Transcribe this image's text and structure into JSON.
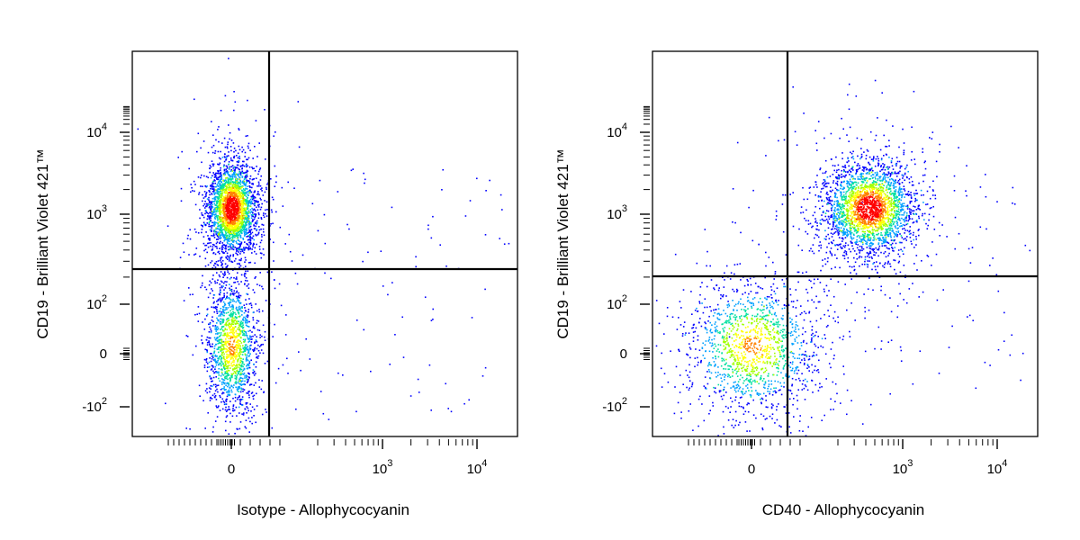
{
  "chart_data": [
    {
      "type": "scatter",
      "xlabel": "Isotype - Allophycocyanin",
      "ylabel": "CD19 - Brilliant Violet 421™",
      "x_scale": "biexponential",
      "y_scale": "biexponential",
      "x_ticks": [
        {
          "value": 0,
          "base": "0",
          "exp": ""
        },
        {
          "value": 1000,
          "base": "10",
          "exp": "3"
        },
        {
          "value": 10000,
          "base": "10",
          "exp": "4"
        }
      ],
      "y_ticks": [
        {
          "value": -100,
          "base": "-10",
          "exp": "2"
        },
        {
          "value": 0,
          "base": "0",
          "exp": ""
        },
        {
          "value": 100,
          "base": "10",
          "exp": "2"
        },
        {
          "value": 1000,
          "base": "10",
          "exp": "3"
        },
        {
          "value": 10000,
          "base": "10",
          "exp": "4"
        }
      ],
      "quadrant_gate": {
        "x": 50,
        "y": 200
      },
      "populations": [
        {
          "name": "",
          "x_center": 0,
          "y_center": 1200,
          "x_spread": "narrow",
          "y_spread": "moderate",
          "density": "high"
        },
        {
          "name": "",
          "x_center": 0,
          "y_center": 5,
          "x_spread": "narrow",
          "y_spread": "wide",
          "density": "medium"
        }
      ],
      "colormap": [
        "#0000ff",
        "#00a0ff",
        "#00e0a0",
        "#a0ff00",
        "#ffff00",
        "#ff8000",
        "#ff0000"
      ]
    },
    {
      "type": "scatter",
      "xlabel": "CD40 - Allophycocyanin",
      "ylabel": "CD19 - Brilliant Violet 421™",
      "x_scale": "biexponential",
      "y_scale": "biexponential",
      "x_ticks": [
        {
          "value": 0,
          "base": "0",
          "exp": ""
        },
        {
          "value": 1000,
          "base": "10",
          "exp": "3"
        },
        {
          "value": 10000,
          "base": "10",
          "exp": "4"
        }
      ],
      "y_ticks": [
        {
          "value": -100,
          "base": "-10",
          "exp": "2"
        },
        {
          "value": 0,
          "base": "0",
          "exp": ""
        },
        {
          "value": 100,
          "base": "10",
          "exp": "2"
        },
        {
          "value": 1000,
          "base": "10",
          "exp": "3"
        },
        {
          "value": 10000,
          "base": "10",
          "exp": "4"
        }
      ],
      "quadrant_gate": {
        "x": 45,
        "y": 180
      },
      "populations": [
        {
          "name": "",
          "x_center": 350,
          "y_center": 1200,
          "x_spread": "moderate",
          "y_spread": "moderate",
          "density": "high"
        },
        {
          "name": "",
          "x_center": 0,
          "y_center": 5,
          "x_spread": "wide",
          "y_spread": "wide",
          "density": "medium"
        }
      ],
      "colormap": [
        "#0000ff",
        "#00a0ff",
        "#00e0a0",
        "#a0ff00",
        "#ffff00",
        "#ff8000",
        "#ff0000"
      ]
    }
  ]
}
